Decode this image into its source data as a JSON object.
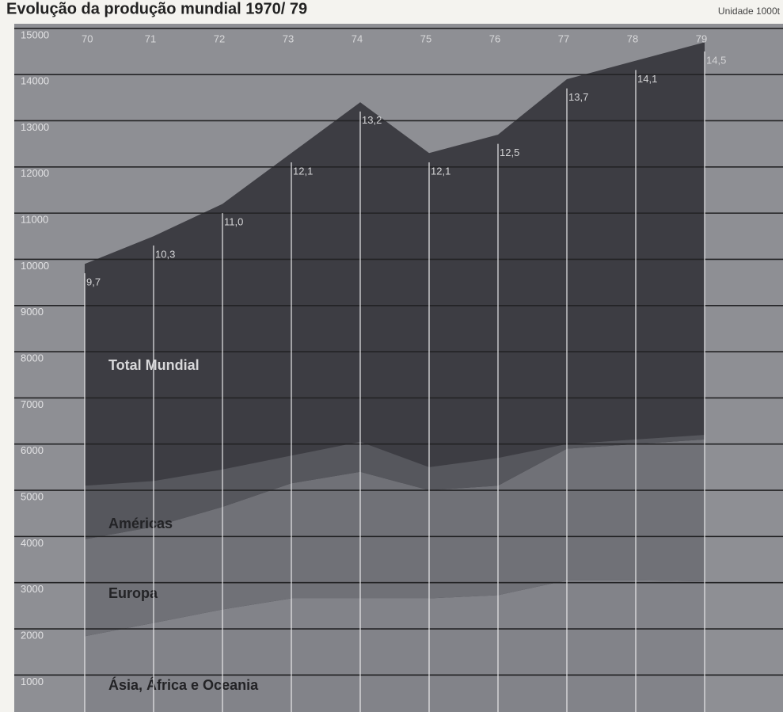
{
  "chart_data": {
    "type": "area",
    "title": "Evolução da produção mundial 1970/ 79",
    "subtitle": "Unidade 1000t",
    "categories": [
      "70",
      "71",
      "72",
      "73",
      "74",
      "75",
      "76",
      "77",
      "78",
      "79"
    ],
    "series": [
      {
        "name": "Total Mundial",
        "color": "#3d3d43",
        "stacked": false,
        "values": [
          9700,
          10300,
          11000,
          12100,
          13200,
          12100,
          12500,
          13700,
          14100,
          14500
        ],
        "value_labels": [
          "9,7",
          "10,3",
          "11,0",
          "12,1",
          "13,2",
          "12,1",
          "12,5",
          "13,7",
          "14,1",
          "14,5"
        ]
      },
      {
        "name": "Ásia, África e Oceania",
        "color": "#828389",
        "stacked": true,
        "values": [
          1640,
          1930,
          2220,
          2460,
          2460,
          2460,
          2530,
          2850,
          2850,
          2830
        ]
      },
      {
        "name": "Europa",
        "color": "#707177",
        "stacked": true,
        "values": [
          2100,
          2080,
          2220,
          2490,
          2740,
          2340,
          2370,
          2850,
          2950,
          3070
        ]
      },
      {
        "name": "Américas",
        "color": "#56575d",
        "stacked": true,
        "values": [
          1160,
          990,
          810,
          600,
          650,
          500,
          600,
          100,
          100,
          100
        ]
      }
    ],
    "ylim": [
      200,
      15100
    ],
    "yticks": [
      1000,
      2000,
      3000,
      4000,
      5000,
      6000,
      7000,
      8000,
      9000,
      10000,
      11000,
      12000,
      13000,
      14000,
      15000
    ],
    "grid": true,
    "background": "#8e8f94"
  }
}
